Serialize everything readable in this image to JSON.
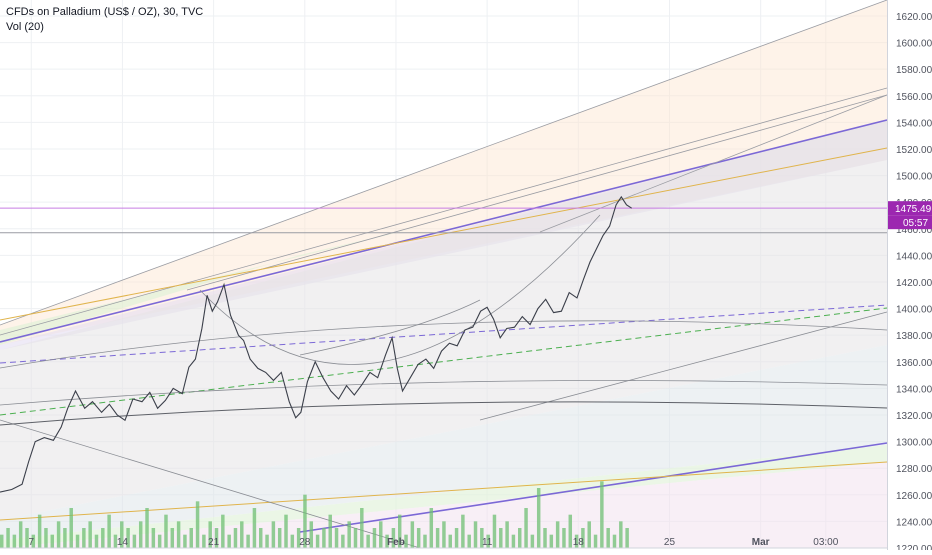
{
  "legend": {
    "title": "CFDs on Palladium (US$ / OZ), 30, TVC",
    "indicator": "Vol (20)"
  },
  "chart_data": {
    "type": "line",
    "ylim": [
      1220,
      1632
    ],
    "y_ticks": [
      1220,
      1240,
      1260,
      1280,
      1300,
      1320,
      1340,
      1360,
      1380,
      1400,
      1420,
      1440,
      1460,
      1480,
      1500,
      1520,
      1540,
      1560,
      1580,
      1600,
      1620
    ],
    "x_ticks": [
      "7",
      "14",
      "21",
      "28",
      "Feb",
      "11",
      "18",
      "25",
      "Mar",
      "03:00"
    ],
    "x_tick_pos": [
      0.5,
      7.5,
      14.5,
      21.5,
      28.5,
      35.5,
      42.5,
      49.5,
      56.5,
      61.5
    ],
    "xlim": [
      -1.9,
      66.2
    ],
    "grid": true,
    "last_price": "1475.49",
    "last_price_value": 1475.49,
    "countdown": "05:57",
    "horizontal_line_value": 1457,
    "price_path": [
      [
        -1.9,
        1262
      ],
      [
        -1.0,
        1264
      ],
      [
        -0.2,
        1268
      ],
      [
        0.3,
        1285
      ],
      [
        0.8,
        1300
      ],
      [
        1.5,
        1303
      ],
      [
        2.2,
        1301
      ],
      [
        2.8,
        1311
      ],
      [
        3.3,
        1325
      ],
      [
        3.9,
        1338
      ],
      [
        4.6,
        1325
      ],
      [
        5.2,
        1330
      ],
      [
        5.9,
        1322
      ],
      [
        6.5,
        1328
      ],
      [
        7.1,
        1320
      ],
      [
        7.7,
        1316
      ],
      [
        8.3,
        1332
      ],
      [
        9.0,
        1330
      ],
      [
        9.6,
        1337
      ],
      [
        10.2,
        1325
      ],
      [
        10.8,
        1331
      ],
      [
        11.4,
        1340
      ],
      [
        12.1,
        1336
      ],
      [
        12.6,
        1356
      ],
      [
        13.1,
        1362
      ],
      [
        13.6,
        1385
      ],
      [
        14.0,
        1410
      ],
      [
        14.4,
        1398
      ],
      [
        14.8,
        1405
      ],
      [
        15.3,
        1418
      ],
      [
        15.8,
        1395
      ],
      [
        16.4,
        1380
      ],
      [
        16.8,
        1376
      ],
      [
        17.3,
        1362
      ],
      [
        17.9,
        1355
      ],
      [
        18.5,
        1352
      ],
      [
        19.1,
        1346
      ],
      [
        19.7,
        1352
      ],
      [
        20.3,
        1330
      ],
      [
        20.8,
        1318
      ],
      [
        21.2,
        1322
      ],
      [
        21.7,
        1345
      ],
      [
        22.3,
        1360
      ],
      [
        22.9,
        1348
      ],
      [
        23.5,
        1338
      ],
      [
        24.1,
        1332
      ],
      [
        24.7,
        1342
      ],
      [
        25.3,
        1335
      ],
      [
        25.9,
        1343
      ],
      [
        26.5,
        1352
      ],
      [
        27.1,
        1348
      ],
      [
        27.7,
        1365
      ],
      [
        28.2,
        1378
      ],
      [
        28.6,
        1355
      ],
      [
        29.0,
        1338
      ],
      [
        29.6,
        1348
      ],
      [
        30.2,
        1358
      ],
      [
        30.8,
        1362
      ],
      [
        31.4,
        1355
      ],
      [
        32.0,
        1368
      ],
      [
        32.6,
        1374
      ],
      [
        33.2,
        1372
      ],
      [
        33.8,
        1384
      ],
      [
        34.4,
        1386
      ],
      [
        35.0,
        1398
      ],
      [
        35.5,
        1401
      ],
      [
        36.0,
        1392
      ],
      [
        36.5,
        1378
      ],
      [
        37.0,
        1385
      ],
      [
        37.6,
        1386
      ],
      [
        38.2,
        1394
      ],
      [
        38.8,
        1388
      ],
      [
        39.4,
        1400
      ],
      [
        40.0,
        1407
      ],
      [
        40.6,
        1397
      ],
      [
        41.2,
        1398
      ],
      [
        41.8,
        1412
      ],
      [
        42.4,
        1408
      ],
      [
        42.9,
        1422
      ],
      [
        43.4,
        1435
      ],
      [
        43.9,
        1445
      ],
      [
        44.4,
        1455
      ],
      [
        44.9,
        1462
      ],
      [
        45.4,
        1478
      ],
      [
        45.8,
        1484
      ],
      [
        46.2,
        1478
      ],
      [
        46.6,
        1475.5
      ]
    ],
    "volume_max": 12,
    "volume": [
      2,
      3,
      2,
      4,
      3,
      2,
      5,
      3,
      2,
      4,
      3,
      6,
      2,
      3,
      4,
      2,
      3,
      5,
      2,
      4,
      3,
      2,
      4,
      6,
      3,
      2,
      5,
      3,
      4,
      2,
      3,
      7,
      2,
      4,
      3,
      5,
      2,
      3,
      4,
      2,
      6,
      3,
      2,
      4,
      3,
      5,
      2,
      3,
      8,
      4,
      2,
      3,
      5,
      3,
      2,
      4,
      3,
      6,
      2,
      3,
      4,
      2,
      3,
      5,
      2,
      4,
      3,
      2,
      6,
      3,
      4,
      2,
      3,
      5,
      2,
      4,
      3,
      2,
      5,
      3,
      4,
      2,
      3,
      6,
      2,
      9,
      3,
      2,
      4,
      3,
      5,
      2,
      3,
      4,
      2,
      10,
      3,
      2,
      4,
      3
    ]
  },
  "colors": {
    "candle_line": "#3b3f4a",
    "volume": "#6fbf73",
    "price_label_bg": "#9c27b0",
    "axis_text": "#50535e",
    "grid": "#eef0f3",
    "purple_line": "#7b68d6",
    "gold_line": "#e0b44c",
    "gray_line": "#8a8d94"
  }
}
